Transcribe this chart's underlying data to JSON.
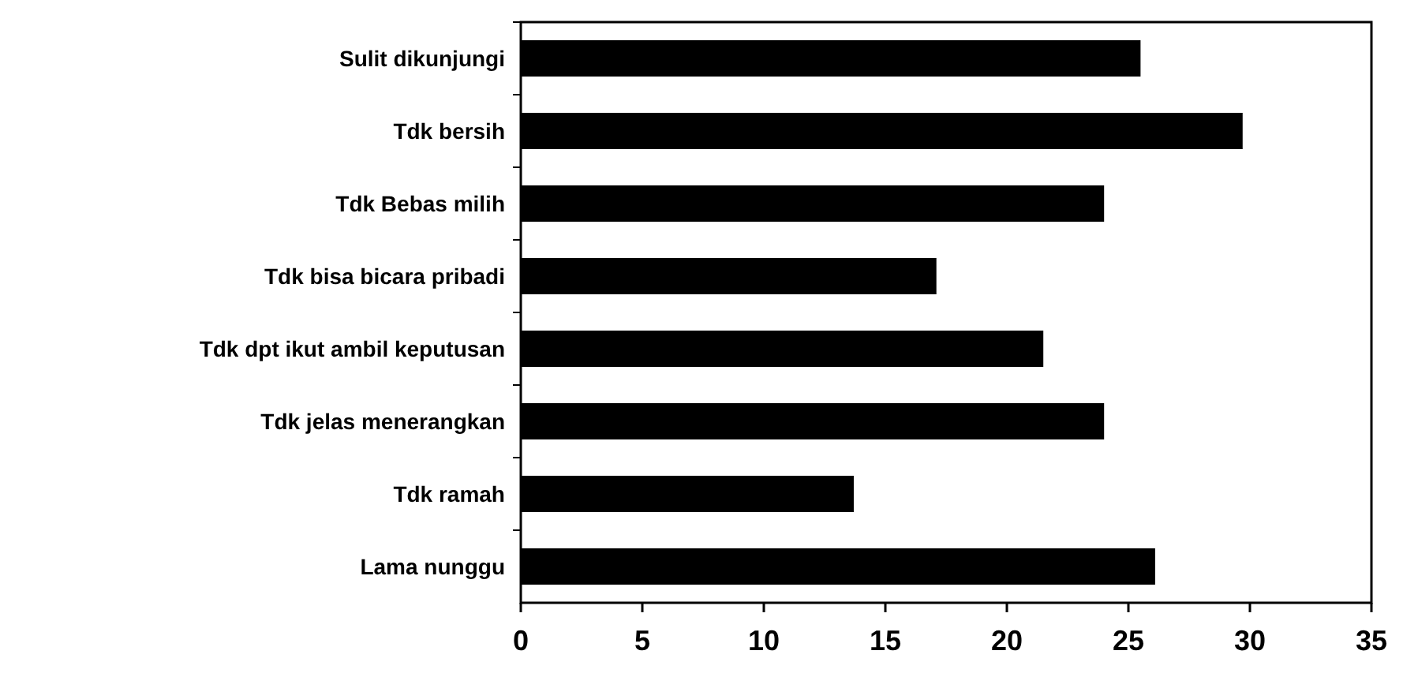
{
  "chart_data": {
    "type": "bar",
    "orientation": "horizontal",
    "categories": [
      "Sulit dikunjungi",
      "Tdk bersih",
      "Tdk Bebas milih",
      "Tdk bisa bicara pribadi",
      "Tdk dpt ikut ambil keputusan",
      "Tdk jelas menerangkan",
      "Tdk ramah",
      "Lama nunggu"
    ],
    "values": [
      25.5,
      29.7,
      24.0,
      17.1,
      21.5,
      24.0,
      13.7,
      26.1
    ],
    "color": "#000000",
    "xlim": [
      0,
      35
    ],
    "xticks": [
      0,
      5,
      10,
      15,
      20,
      25,
      30,
      35
    ],
    "grid": false
  }
}
